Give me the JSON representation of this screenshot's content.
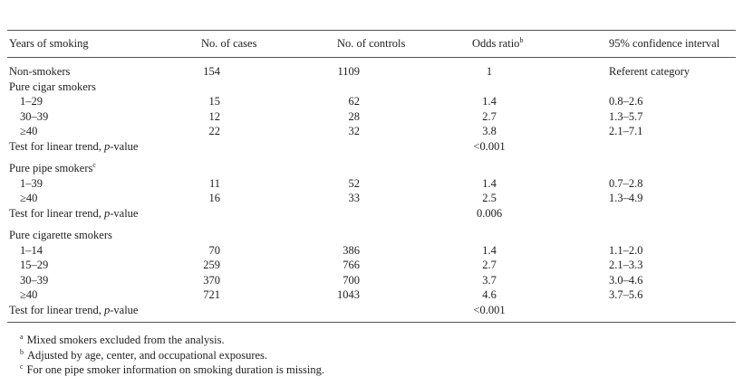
{
  "table": {
    "header": [
      {
        "text": "Years of smoking"
      },
      {
        "text": "No. of cases"
      },
      {
        "text": "No. of controls"
      },
      {
        "text": "Odds ratio",
        "sup": "b"
      },
      {
        "text": "95% confidence interval"
      }
    ],
    "groups": [
      {
        "rows": [
          [
            "Non-smokers",
            154,
            1109,
            1,
            "Referent category"
          ]
        ]
      },
      {
        "heading": {
          "text": "Pure cigar smokers"
        },
        "rows": [
          [
            "1–29",
            15,
            62,
            1.4,
            "0.8–2.6"
          ],
          [
            "30–39",
            12,
            28,
            2.7,
            "1.3–5.7"
          ],
          [
            "≥40",
            22,
            32,
            3.8,
            "2.1–7.1"
          ]
        ],
        "trend": {
          "label": [
            "Test for linear trend, ",
            "p",
            "-value"
          ],
          "value": "<0.001"
        }
      },
      {
        "heading": {
          "text": "Pure pipe smokers",
          "sup": "c"
        },
        "rows": [
          [
            "1–39",
            11,
            52,
            1.4,
            "0.7–2.8"
          ],
          [
            "≥40",
            16,
            33,
            2.5,
            "1.3–4.9"
          ]
        ],
        "trend": {
          "label": [
            "Test for linear trend, ",
            "p",
            "-value"
          ],
          "value": 0.006
        }
      },
      {
        "heading": {
          "text": "Pure cigarette smokers"
        },
        "rows": [
          [
            "1–14",
            70,
            386,
            1.4,
            "1.1–2.0"
          ],
          [
            "15–29",
            259,
            766,
            2.7,
            "2.1–3.3"
          ],
          [
            "30–39",
            370,
            700,
            3.7,
            "3.0–4.6"
          ],
          [
            "≥40",
            721,
            1043,
            4.6,
            "3.7–5.6"
          ]
        ],
        "trend": {
          "label": [
            "Test for linear trend, ",
            "p",
            "-value"
          ],
          "value": "<0.001"
        }
      }
    ],
    "footnotes": [
      {
        "mark": "a",
        "text": "Mixed smokers excluded from the analysis."
      },
      {
        "mark": "b",
        "text": "Adjusted by age, center, and occupational exposures."
      },
      {
        "mark": "c",
        "text": "For one pipe smoker information on smoking duration is missing."
      }
    ]
  }
}
